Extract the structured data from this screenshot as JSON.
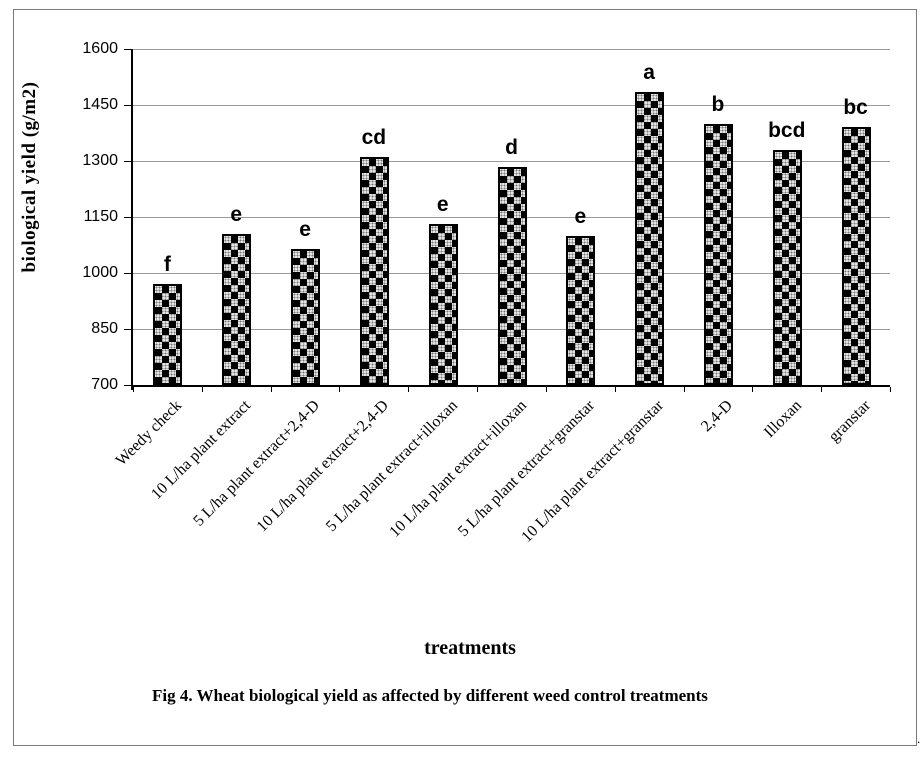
{
  "figure": {
    "caption": "Fig 4. Wheat biological yield as affected by different weed control treatments",
    "trailing_period": "."
  },
  "chart_data": {
    "type": "bar",
    "title": "",
    "xlabel": "treatments",
    "ylabel": "biological yield (g/m2)",
    "ylim": [
      700,
      1600
    ],
    "yticks": [
      700,
      850,
      1000,
      1150,
      1300,
      1450,
      1600
    ],
    "grid": true,
    "legend_position": "none",
    "bar_pattern": "black-and-white woven checker",
    "categories": [
      "Weedy check",
      "10 L/ha plant extract",
      "5 L/ha plant extract+2,4-D",
      "10 L/ha plant extract+2,4-D",
      "5 L/ha plant extract+illoxan",
      "10 L/ha plant extract+illoxan",
      "5 L/ha plant extract+granstar",
      "10 L/ha plant extract+granstar",
      "2,4-D",
      "Illoxan",
      "granstar"
    ],
    "values": [
      970,
      1105,
      1065,
      1310,
      1130,
      1285,
      1100,
      1485,
      1400,
      1330,
      1390
    ],
    "bar_labels": [
      "f",
      "e",
      "e",
      "cd",
      "e",
      "d",
      "e",
      "a",
      "b",
      "bcd",
      "bc"
    ],
    "colors": {
      "bar": "#000000",
      "grid": "#999999",
      "axis": "#000000",
      "text": "#000000",
      "frame": "#7a7a7a"
    }
  }
}
